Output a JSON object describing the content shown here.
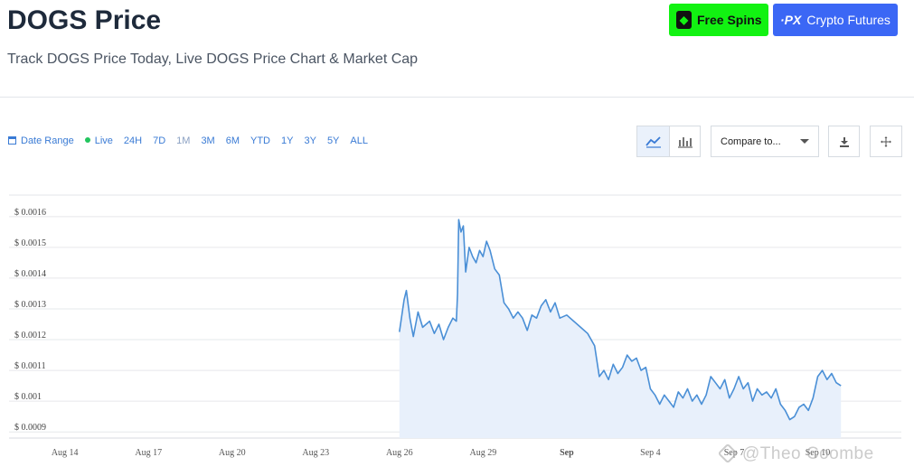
{
  "header": {
    "title": "DOGS Price",
    "subtitle": "Track DOGS Price Today, Live DOGS Price Chart & Market Cap"
  },
  "promo": {
    "free_spins_label": "Free Spins",
    "crypto_futures_label": "Crypto Futures",
    "free_spins_color": "#12f212",
    "crypto_futures_color": "#3b67f5"
  },
  "toolbar": {
    "date_range_label": "Date Range",
    "live_label": "Live",
    "ranges": [
      "24H",
      "7D",
      "1M",
      "3M",
      "6M",
      "YTD",
      "1Y",
      "3Y",
      "5Y",
      "ALL"
    ],
    "compare_label": "Compare to...",
    "accent_color": "#3a7bd5"
  },
  "watermark": {
    "text": "@Theo Coombe"
  },
  "chart_data": {
    "type": "area",
    "title": "",
    "xlabel": "",
    "ylabel": "",
    "line_color": "#4a8fd6",
    "fill_color": "#e8f0fb",
    "grid": true,
    "ylim": [
      0.00088,
      0.00167
    ],
    "xlim": [
      "2024-08-12",
      "2024-09-13"
    ],
    "x_ticks": [
      {
        "date": "2024-08-14",
        "label": "Aug 14",
        "bold": false
      },
      {
        "date": "2024-08-17",
        "label": "Aug 17",
        "bold": false
      },
      {
        "date": "2024-08-20",
        "label": "Aug 20",
        "bold": false
      },
      {
        "date": "2024-08-23",
        "label": "Aug 23",
        "bold": false
      },
      {
        "date": "2024-08-26",
        "label": "Aug 26",
        "bold": false
      },
      {
        "date": "2024-08-29",
        "label": "Aug 29",
        "bold": false
      },
      {
        "date": "2024-09-01",
        "label": "Sep",
        "bold": true
      },
      {
        "date": "2024-09-04",
        "label": "Sep 4",
        "bold": false
      },
      {
        "date": "2024-09-07",
        "label": "Sep 7",
        "bold": false
      },
      {
        "date": "2024-09-10",
        "label": "Sep 10",
        "bold": false
      }
    ],
    "y_ticks": [
      {
        "value": 0.0009,
        "label": "$ 0.0009"
      },
      {
        "value": 0.001,
        "label": "$ 0.001"
      },
      {
        "value": 0.0011,
        "label": "$ 0.0011"
      },
      {
        "value": 0.0012,
        "label": "$ 0.0012"
      },
      {
        "value": 0.0013,
        "label": "$ 0.0013"
      },
      {
        "value": 0.0014,
        "label": "$ 0.0014"
      },
      {
        "value": 0.0015,
        "label": "$ 0.0015"
      },
      {
        "value": 0.0016,
        "label": "$ 0.0016"
      }
    ],
    "series": [
      {
        "points": [
          [
            "2024-08-26 00:00",
            0.001225
          ],
          [
            "2024-08-26 04:00",
            0.00133
          ],
          [
            "2024-08-26 06:00",
            0.00136
          ],
          [
            "2024-08-26 09:00",
            0.00127
          ],
          [
            "2024-08-26 12:00",
            0.00121
          ],
          [
            "2024-08-26 16:00",
            0.00129
          ],
          [
            "2024-08-26 20:00",
            0.00124
          ],
          [
            "2024-08-27 02:00",
            0.00126
          ],
          [
            "2024-08-27 06:00",
            0.00122
          ],
          [
            "2024-08-27 10:00",
            0.00125
          ],
          [
            "2024-08-27 14:00",
            0.0012
          ],
          [
            "2024-08-27 18:00",
            0.00124
          ],
          [
            "2024-08-27 22:00",
            0.00127
          ],
          [
            "2024-08-28 01:00",
            0.00126
          ],
          [
            "2024-08-28 02:00",
            0.00135
          ],
          [
            "2024-08-28 03:00",
            0.00159
          ],
          [
            "2024-08-28 05:00",
            0.00155
          ],
          [
            "2024-08-28 07:00",
            0.00157
          ],
          [
            "2024-08-28 09:00",
            0.00142
          ],
          [
            "2024-08-28 12:00",
            0.0015
          ],
          [
            "2024-08-28 15:00",
            0.00147
          ],
          [
            "2024-08-28 18:00",
            0.00145
          ],
          [
            "2024-08-28 21:00",
            0.00149
          ],
          [
            "2024-08-29 00:00",
            0.00147
          ],
          [
            "2024-08-29 03:00",
            0.00152
          ],
          [
            "2024-08-29 06:00",
            0.00149
          ],
          [
            "2024-08-29 10:00",
            0.00143
          ],
          [
            "2024-08-29 14:00",
            0.00141
          ],
          [
            "2024-08-29 18:00",
            0.00132
          ],
          [
            "2024-08-29 22:00",
            0.0013
          ],
          [
            "2024-08-30 02:00",
            0.00127
          ],
          [
            "2024-08-30 06:00",
            0.00129
          ],
          [
            "2024-08-30 10:00",
            0.00127
          ],
          [
            "2024-08-30 14:00",
            0.00123
          ],
          [
            "2024-08-30 18:00",
            0.00128
          ],
          [
            "2024-08-30 22:00",
            0.00127
          ],
          [
            "2024-08-31 02:00",
            0.00131
          ],
          [
            "2024-08-31 06:00",
            0.00133
          ],
          [
            "2024-08-31 10:00",
            0.00129
          ],
          [
            "2024-08-31 14:00",
            0.00132
          ],
          [
            "2024-08-31 18:00",
            0.00127
          ],
          [
            "2024-09-01 00:00",
            0.00128
          ],
          [
            "2024-09-01 06:00",
            0.00126
          ],
          [
            "2024-09-01 12:00",
            0.00124
          ],
          [
            "2024-09-01 18:00",
            0.00122
          ],
          [
            "2024-09-02 00:00",
            0.00118
          ],
          [
            "2024-09-02 04:00",
            0.00108
          ],
          [
            "2024-09-02 08:00",
            0.0011
          ],
          [
            "2024-09-02 12:00",
            0.00107
          ],
          [
            "2024-09-02 16:00",
            0.00112
          ],
          [
            "2024-09-02 20:00",
            0.00109
          ],
          [
            "2024-09-03 00:00",
            0.00111
          ],
          [
            "2024-09-03 04:00",
            0.00115
          ],
          [
            "2024-09-03 08:00",
            0.00113
          ],
          [
            "2024-09-03 12:00",
            0.00114
          ],
          [
            "2024-09-03 16:00",
            0.0011
          ],
          [
            "2024-09-03 20:00",
            0.00111
          ],
          [
            "2024-09-04 00:00",
            0.00104
          ],
          [
            "2024-09-04 04:00",
            0.00102
          ],
          [
            "2024-09-04 08:00",
            0.00099
          ],
          [
            "2024-09-04 12:00",
            0.00102
          ],
          [
            "2024-09-04 16:00",
            0.001
          ],
          [
            "2024-09-04 20:00",
            0.00098
          ],
          [
            "2024-09-05 00:00",
            0.00103
          ],
          [
            "2024-09-05 04:00",
            0.00101
          ],
          [
            "2024-09-05 08:00",
            0.00104
          ],
          [
            "2024-09-05 12:00",
            0.001
          ],
          [
            "2024-09-05 16:00",
            0.00102
          ],
          [
            "2024-09-05 20:00",
            0.00099
          ],
          [
            "2024-09-06 00:00",
            0.00102
          ],
          [
            "2024-09-06 04:00",
            0.00108
          ],
          [
            "2024-09-06 08:00",
            0.00106
          ],
          [
            "2024-09-06 12:00",
            0.00104
          ],
          [
            "2024-09-06 16:00",
            0.00107
          ],
          [
            "2024-09-06 20:00",
            0.00101
          ],
          [
            "2024-09-07 00:00",
            0.00104
          ],
          [
            "2024-09-07 04:00",
            0.00108
          ],
          [
            "2024-09-07 08:00",
            0.00104
          ],
          [
            "2024-09-07 12:00",
            0.00106
          ],
          [
            "2024-09-07 16:00",
            0.001
          ],
          [
            "2024-09-07 20:00",
            0.00104
          ],
          [
            "2024-09-08 00:00",
            0.00102
          ],
          [
            "2024-09-08 04:00",
            0.00103
          ],
          [
            "2024-09-08 08:00",
            0.00101
          ],
          [
            "2024-09-08 12:00",
            0.00104
          ],
          [
            "2024-09-08 16:00",
            0.00099
          ],
          [
            "2024-09-08 20:00",
            0.00097
          ],
          [
            "2024-09-09 00:00",
            0.00094
          ],
          [
            "2024-09-09 04:00",
            0.00095
          ],
          [
            "2024-09-09 08:00",
            0.00098
          ],
          [
            "2024-09-09 12:00",
            0.00099
          ],
          [
            "2024-09-09 16:00",
            0.00097
          ],
          [
            "2024-09-09 20:00",
            0.00101
          ],
          [
            "2024-09-10 00:00",
            0.00108
          ],
          [
            "2024-09-10 04:00",
            0.0011
          ],
          [
            "2024-09-10 08:00",
            0.00107
          ],
          [
            "2024-09-10 12:00",
            0.00109
          ],
          [
            "2024-09-10 16:00",
            0.00106
          ],
          [
            "2024-09-10 20:00",
            0.00105
          ]
        ]
      }
    ]
  }
}
